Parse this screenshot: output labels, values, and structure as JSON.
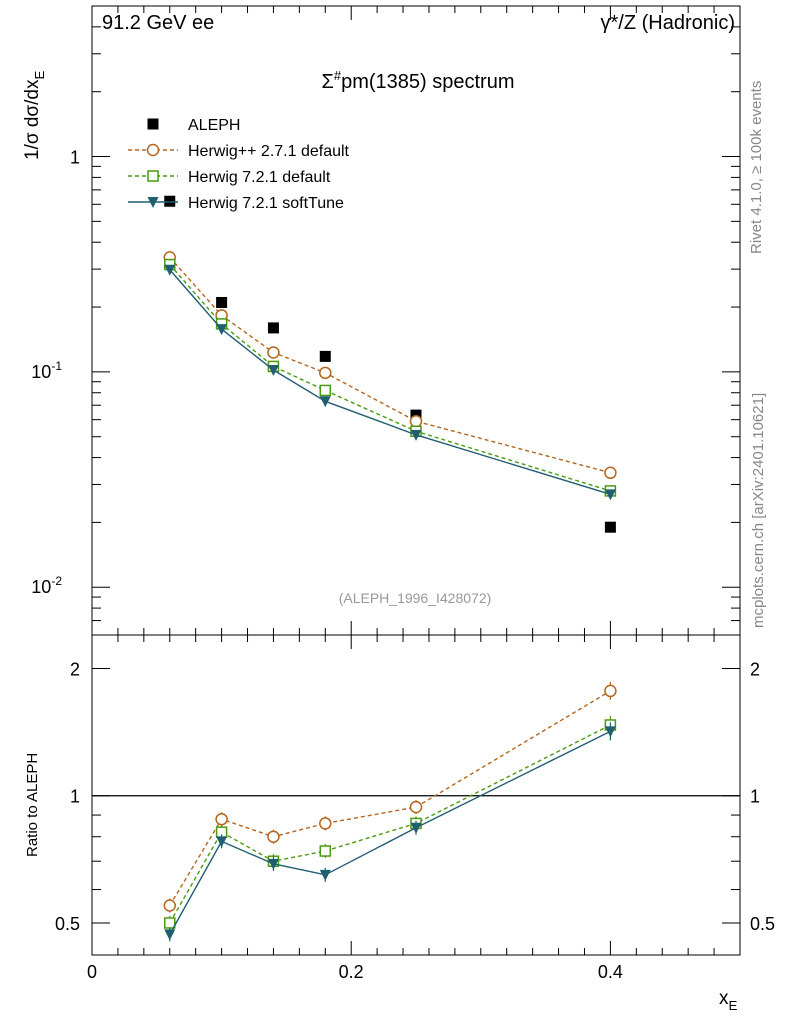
{
  "header": {
    "left": "91.2 GeV ee",
    "right": "γ*/Z (Hadronic)"
  },
  "side_labels": {
    "rivet": "Rivet 4.1.0, ≥ 100k events",
    "mcplots": "mcplots.cern.ch [arXiv:2401.10621]"
  },
  "chart_data": [
    {
      "type": "line",
      "title": "Σ#pm(1385) spectrum",
      "ylabel": "1/σ dσ/dxE",
      "xlabel": "xE",
      "xscale": "linear",
      "yscale": "log",
      "xlim": [
        0,
        0.5
      ],
      "ylim": [
        0.006,
        5
      ],
      "y_tick_labels": [
        "10^-2",
        "10^-1",
        "1"
      ],
      "analysis_label": "(ALEPH_1996_I428072)",
      "x": [
        0.06,
        0.1,
        0.14,
        0.18,
        0.25,
        0.4
      ],
      "series": [
        {
          "name": "ALEPH",
          "color": "#000000",
          "marker": "square",
          "line": "none",
          "values": [
            0.62,
            0.21,
            0.16,
            0.118,
            0.063,
            0.019
          ]
        },
        {
          "name": "Herwig++ 2.7.1 default",
          "color": "#b5651d",
          "marker": "open-circle",
          "line": "dashed",
          "values": [
            0.34,
            0.183,
            0.123,
            0.099,
            0.059,
            0.034
          ]
        },
        {
          "name": "Herwig 7.2.1 default",
          "color": "#4a9a10",
          "marker": "open-square",
          "line": "dashed",
          "values": [
            0.315,
            0.167,
            0.106,
            0.082,
            0.053,
            0.028
          ]
        },
        {
          "name": "Herwig 7.2.1 softTune",
          "color": "#1f5f70",
          "marker": "down-triangle",
          "line": "solid",
          "values": [
            0.298,
            0.158,
            0.102,
            0.073,
            0.051,
            0.027
          ]
        }
      ]
    },
    {
      "type": "line",
      "title": "",
      "ylabel": "Ratio to ALEPH",
      "xlabel": "xE",
      "xscale": "linear",
      "yscale": "log",
      "xlim": [
        0,
        0.5
      ],
      "ylim": [
        0.42,
        2.4
      ],
      "x_tick_labels": [
        "0",
        "0.2",
        "0.4"
      ],
      "y_tick_labels": [
        "0.5",
        "1",
        "2"
      ],
      "reference_line": 1,
      "x": [
        0.06,
        0.1,
        0.14,
        0.18,
        0.25,
        0.4
      ],
      "series": [
        {
          "name": "Herwig++ 2.7.1 default",
          "color": "#b5651d",
          "marker": "open-circle",
          "line": "dashed",
          "values": [
            0.55,
            0.88,
            0.8,
            0.86,
            0.94,
            1.77
          ]
        },
        {
          "name": "Herwig 7.2.1 default",
          "color": "#4a9a10",
          "marker": "open-square",
          "line": "dashed",
          "values": [
            0.5,
            0.82,
            0.7,
            0.74,
            0.86,
            1.47
          ]
        },
        {
          "name": "Herwig 7.2.1 softTune",
          "color": "#1f5f70",
          "marker": "down-triangle",
          "line": "solid",
          "values": [
            0.47,
            0.78,
            0.69,
            0.65,
            0.84,
            1.42
          ]
        }
      ]
    }
  ]
}
